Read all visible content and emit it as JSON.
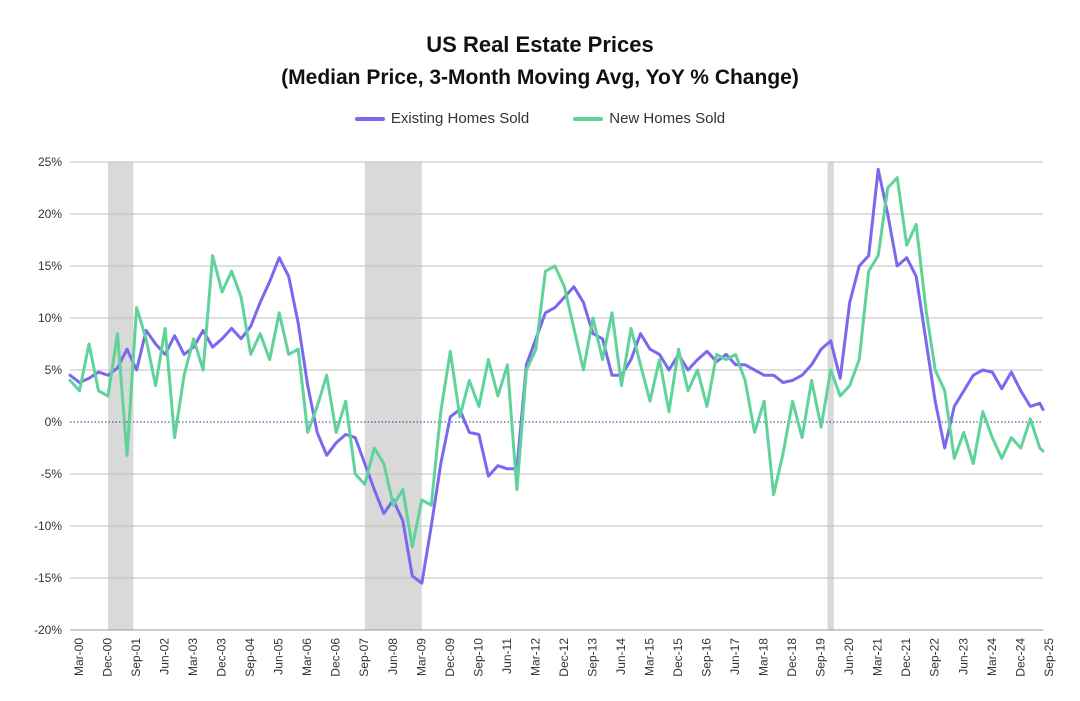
{
  "chart_data": {
    "type": "line",
    "title": "US Real Estate Prices",
    "subtitle": "(Median Price, 3-Month Moving Avg, YoY % Change)",
    "xlabel": "",
    "ylabel": "",
    "ylim": [
      -20,
      25
    ],
    "y_ticks": [
      "-20%",
      "-15%",
      "-10%",
      "-5%",
      "0%",
      "5%",
      "10%",
      "15%",
      "20%",
      "25%"
    ],
    "x_range": [
      "2000-03",
      "2025-10"
    ],
    "x_ticks": [
      "Mar-00",
      "Dec-00",
      "Sep-01",
      "Jun-02",
      "Mar-03",
      "Dec-03",
      "Sep-04",
      "Jun-05",
      "Mar-06",
      "Dec-06",
      "Sep-07",
      "Jun-08",
      "Mar-09",
      "Dec-09",
      "Sep-10",
      "Jun-11",
      "Mar-12",
      "Dec-12",
      "Sep-13",
      "Jun-14",
      "Mar-15",
      "Dec-15",
      "Sep-16",
      "Jun-17",
      "Mar-18",
      "Dec-18",
      "Sep-19",
      "Jun-20",
      "Mar-21",
      "Dec-21",
      "Sep-22",
      "Jun-23",
      "Mar-24",
      "Dec-24",
      "Sep-25"
    ],
    "recessions": [
      [
        "2001-03",
        "2001-11"
      ],
      [
        "2007-12",
        "2009-06"
      ],
      [
        "2020-02",
        "2020-04"
      ]
    ],
    "grid": true,
    "legend_position": "top-center",
    "series": [
      {
        "name": "Existing Homes Sold",
        "color": "#7b68ee",
        "points": [
          [
            "2000-03",
            4.5
          ],
          [
            "2000-06",
            3.8
          ],
          [
            "2000-09",
            4.2
          ],
          [
            "2000-12",
            4.8
          ],
          [
            "2001-03",
            4.5
          ],
          [
            "2001-06",
            5.2
          ],
          [
            "2001-09",
            7.0
          ],
          [
            "2001-12",
            5.0
          ],
          [
            "2002-03",
            8.8
          ],
          [
            "2002-06",
            7.5
          ],
          [
            "2002-09",
            6.5
          ],
          [
            "2002-12",
            8.3
          ],
          [
            "2003-03",
            6.5
          ],
          [
            "2003-06",
            7.2
          ],
          [
            "2003-09",
            8.8
          ],
          [
            "2003-12",
            7.2
          ],
          [
            "2004-03",
            8.0
          ],
          [
            "2004-06",
            9.0
          ],
          [
            "2004-09",
            8.0
          ],
          [
            "2004-12",
            9.2
          ],
          [
            "2005-03",
            11.5
          ],
          [
            "2005-06",
            13.5
          ],
          [
            "2005-09",
            15.8
          ],
          [
            "2005-12",
            14.0
          ],
          [
            "2006-03",
            9.5
          ],
          [
            "2006-06",
            3.5
          ],
          [
            "2006-09",
            -1.0
          ],
          [
            "2006-12",
            -3.2
          ],
          [
            "2007-03",
            -2.0
          ],
          [
            "2007-06",
            -1.2
          ],
          [
            "2007-09",
            -1.5
          ],
          [
            "2007-12",
            -4.0
          ],
          [
            "2008-03",
            -6.5
          ],
          [
            "2008-06",
            -8.8
          ],
          [
            "2008-09",
            -7.5
          ],
          [
            "2008-12",
            -9.5
          ],
          [
            "2009-03",
            -14.8
          ],
          [
            "2009-06",
            -15.5
          ],
          [
            "2009-09",
            -10.0
          ],
          [
            "2009-12",
            -4.0
          ],
          [
            "2010-03",
            0.5
          ],
          [
            "2010-06",
            1.2
          ],
          [
            "2010-09",
            -1.0
          ],
          [
            "2010-12",
            -1.2
          ],
          [
            "2011-03",
            -5.2
          ],
          [
            "2011-06",
            -4.2
          ],
          [
            "2011-09",
            -4.5
          ],
          [
            "2011-12",
            -4.5
          ],
          [
            "2012-03",
            5.5
          ],
          [
            "2012-06",
            8.0
          ],
          [
            "2012-09",
            10.5
          ],
          [
            "2012-12",
            11.0
          ],
          [
            "2013-03",
            12.0
          ],
          [
            "2013-06",
            13.0
          ],
          [
            "2013-09",
            11.5
          ],
          [
            "2013-12",
            8.5
          ],
          [
            "2014-03",
            8.0
          ],
          [
            "2014-06",
            4.5
          ],
          [
            "2014-09",
            4.5
          ],
          [
            "2014-12",
            6.0
          ],
          [
            "2015-03",
            8.5
          ],
          [
            "2015-06",
            7.0
          ],
          [
            "2015-09",
            6.5
          ],
          [
            "2015-12",
            5.0
          ],
          [
            "2016-03",
            6.5
          ],
          [
            "2016-06",
            5.0
          ],
          [
            "2016-09",
            6.0
          ],
          [
            "2016-12",
            6.8
          ],
          [
            "2017-03",
            5.8
          ],
          [
            "2017-06",
            6.5
          ],
          [
            "2017-09",
            5.5
          ],
          [
            "2017-12",
            5.5
          ],
          [
            "2018-03",
            5.0
          ],
          [
            "2018-06",
            4.5
          ],
          [
            "2018-09",
            4.5
          ],
          [
            "2018-12",
            3.8
          ],
          [
            "2019-03",
            4.0
          ],
          [
            "2019-06",
            4.5
          ],
          [
            "2019-09",
            5.5
          ],
          [
            "2019-12",
            7.0
          ],
          [
            "2020-03",
            7.8
          ],
          [
            "2020-06",
            4.2
          ],
          [
            "2020-09",
            11.5
          ],
          [
            "2020-12",
            15.0
          ],
          [
            "2021-03",
            16.0
          ],
          [
            "2021-06",
            24.3
          ],
          [
            "2021-09",
            20.0
          ],
          [
            "2021-12",
            15.0
          ],
          [
            "2022-03",
            15.8
          ],
          [
            "2022-06",
            14.0
          ],
          [
            "2022-09",
            8.0
          ],
          [
            "2022-12",
            2.0
          ],
          [
            "2023-03",
            -2.5
          ],
          [
            "2023-06",
            1.5
          ],
          [
            "2023-09",
            3.0
          ],
          [
            "2023-12",
            4.5
          ],
          [
            "2024-03",
            5.0
          ],
          [
            "2024-06",
            4.8
          ],
          [
            "2024-09",
            3.2
          ],
          [
            "2024-12",
            4.8
          ],
          [
            "2025-03",
            3.0
          ],
          [
            "2025-06",
            1.5
          ],
          [
            "2025-09",
            1.8
          ],
          [
            "2025-10",
            1.2
          ]
        ]
      },
      {
        "name": "New Homes Sold",
        "color": "#5fd39a",
        "points": [
          [
            "2000-03",
            4.0
          ],
          [
            "2000-06",
            3.0
          ],
          [
            "2000-09",
            7.5
          ],
          [
            "2000-12",
            3.0
          ],
          [
            "2001-03",
            2.5
          ],
          [
            "2001-06",
            8.5
          ],
          [
            "2001-09",
            -3.2
          ],
          [
            "2001-12",
            11.0
          ],
          [
            "2002-03",
            8.0
          ],
          [
            "2002-06",
            3.5
          ],
          [
            "2002-09",
            9.0
          ],
          [
            "2002-12",
            -1.5
          ],
          [
            "2003-03",
            4.5
          ],
          [
            "2003-06",
            8.0
          ],
          [
            "2003-09",
            5.0
          ],
          [
            "2003-12",
            16.0
          ],
          [
            "2004-03",
            12.5
          ],
          [
            "2004-06",
            14.5
          ],
          [
            "2004-09",
            12.0
          ],
          [
            "2004-12",
            6.5
          ],
          [
            "2005-03",
            8.5
          ],
          [
            "2005-06",
            6.0
          ],
          [
            "2005-09",
            10.5
          ],
          [
            "2005-12",
            6.5
          ],
          [
            "2006-03",
            7.0
          ],
          [
            "2006-06",
            -1.0
          ],
          [
            "2006-09",
            1.5
          ],
          [
            "2006-12",
            4.5
          ],
          [
            "2007-03",
            -1.0
          ],
          [
            "2007-06",
            2.0
          ],
          [
            "2007-09",
            -5.0
          ],
          [
            "2007-12",
            -6.0
          ],
          [
            "2008-03",
            -2.5
          ],
          [
            "2008-06",
            -4.0
          ],
          [
            "2008-09",
            -8.0
          ],
          [
            "2008-12",
            -6.5
          ],
          [
            "2009-03",
            -12.0
          ],
          [
            "2009-06",
            -7.5
          ],
          [
            "2009-09",
            -8.0
          ],
          [
            "2009-12",
            1.0
          ],
          [
            "2010-03",
            6.8
          ],
          [
            "2010-06",
            0.5
          ],
          [
            "2010-09",
            4.0
          ],
          [
            "2010-12",
            1.5
          ],
          [
            "2011-03",
            6.0
          ],
          [
            "2011-06",
            2.5
          ],
          [
            "2011-09",
            5.5
          ],
          [
            "2011-12",
            -6.5
          ],
          [
            "2012-03",
            5.0
          ],
          [
            "2012-06",
            7.0
          ],
          [
            "2012-09",
            14.5
          ],
          [
            "2012-12",
            15.0
          ],
          [
            "2013-03",
            13.0
          ],
          [
            "2013-06",
            9.0
          ],
          [
            "2013-09",
            5.0
          ],
          [
            "2013-12",
            10.0
          ],
          [
            "2014-03",
            6.0
          ],
          [
            "2014-06",
            10.5
          ],
          [
            "2014-09",
            3.5
          ],
          [
            "2014-12",
            9.0
          ],
          [
            "2015-03",
            5.5
          ],
          [
            "2015-06",
            2.0
          ],
          [
            "2015-09",
            6.0
          ],
          [
            "2015-12",
            1.0
          ],
          [
            "2016-03",
            7.0
          ],
          [
            "2016-06",
            3.0
          ],
          [
            "2016-09",
            5.0
          ],
          [
            "2016-12",
            1.5
          ],
          [
            "2017-03",
            6.5
          ],
          [
            "2017-06",
            6.0
          ],
          [
            "2017-09",
            6.5
          ],
          [
            "2017-12",
            4.0
          ],
          [
            "2018-03",
            -1.0
          ],
          [
            "2018-06",
            2.0
          ],
          [
            "2018-09",
            -7.0
          ],
          [
            "2018-12",
            -3.0
          ],
          [
            "2019-03",
            2.0
          ],
          [
            "2019-06",
            -1.5
          ],
          [
            "2019-09",
            4.0
          ],
          [
            "2019-12",
            -0.5
          ],
          [
            "2020-03",
            5.0
          ],
          [
            "2020-06",
            2.5
          ],
          [
            "2020-09",
            3.5
          ],
          [
            "2020-12",
            6.0
          ],
          [
            "2021-03",
            14.5
          ],
          [
            "2021-06",
            16.0
          ],
          [
            "2021-09",
            22.5
          ],
          [
            "2021-12",
            23.5
          ],
          [
            "2022-03",
            17.0
          ],
          [
            "2022-06",
            19.0
          ],
          [
            "2022-09",
            11.0
          ],
          [
            "2022-12",
            5.0
          ],
          [
            "2023-03",
            3.0
          ],
          [
            "2023-06",
            -3.5
          ],
          [
            "2023-09",
            -1.0
          ],
          [
            "2023-12",
            -4.0
          ],
          [
            "2024-03",
            1.0
          ],
          [
            "2024-06",
            -1.5
          ],
          [
            "2024-09",
            -3.5
          ],
          [
            "2024-12",
            -1.5
          ],
          [
            "2025-03",
            -2.5
          ],
          [
            "2025-06",
            0.3
          ],
          [
            "2025-09",
            -2.5
          ],
          [
            "2025-10",
            -2.8
          ]
        ]
      }
    ]
  }
}
